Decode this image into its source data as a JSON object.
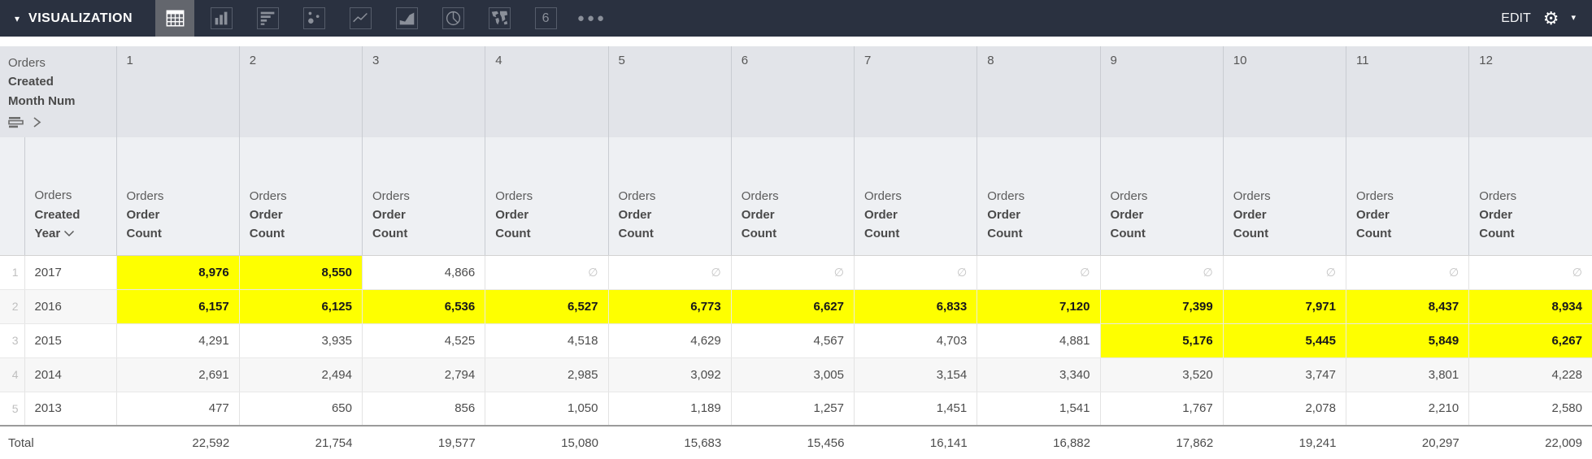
{
  "toolbar": {
    "title": "VISUALIZATION",
    "edit_label": "EDIT",
    "single_value_glyph": "6",
    "viz_types": [
      {
        "name": "table",
        "selected": true
      },
      {
        "name": "column-chart",
        "selected": false
      },
      {
        "name": "bar-chart",
        "selected": false
      },
      {
        "name": "scatter-plot",
        "selected": false
      },
      {
        "name": "line-chart",
        "selected": false
      },
      {
        "name": "area-chart",
        "selected": false
      },
      {
        "name": "pie-chart",
        "selected": false
      },
      {
        "name": "map",
        "selected": false
      },
      {
        "name": "single-value",
        "selected": false
      },
      {
        "name": "more-viz-types",
        "selected": false
      }
    ]
  },
  "colors": {
    "toolbar_bg": "#2a3140",
    "highlight": "#feff00",
    "header_row1_bg": "#e2e4e9",
    "header_row2_bg": "#eef0f3"
  },
  "pivot": {
    "view_label": "Orders",
    "field_label": "Created Month Num",
    "columns": [
      "1",
      "2",
      "3",
      "4",
      "5",
      "6",
      "7",
      "8",
      "9",
      "10",
      "11",
      "12"
    ]
  },
  "row_dimension": {
    "view_label": "Orders",
    "field_label": "Created Year"
  },
  "measure": {
    "view_label": "Orders",
    "field_label": "Order Count"
  },
  "null_symbol": "∅",
  "rows": [
    {
      "num": "1",
      "year": "2017",
      "cells": [
        {
          "v": "8,976",
          "hl": true
        },
        {
          "v": "8,550",
          "hl": true
        },
        {
          "v": "4,866"
        },
        {
          "null": true
        },
        {
          "null": true
        },
        {
          "null": true
        },
        {
          "null": true
        },
        {
          "null": true
        },
        {
          "null": true
        },
        {
          "null": true
        },
        {
          "null": true
        },
        {
          "null": true
        }
      ]
    },
    {
      "num": "2",
      "year": "2016",
      "cells": [
        {
          "v": "6,157",
          "hl": true
        },
        {
          "v": "6,125",
          "hl": true
        },
        {
          "v": "6,536",
          "hl": true
        },
        {
          "v": "6,527",
          "hl": true
        },
        {
          "v": "6,773",
          "hl": true
        },
        {
          "v": "6,627",
          "hl": true
        },
        {
          "v": "6,833",
          "hl": true
        },
        {
          "v": "7,120",
          "hl": true
        },
        {
          "v": "7,399",
          "hl": true
        },
        {
          "v": "7,971",
          "hl": true
        },
        {
          "v": "8,437",
          "hl": true
        },
        {
          "v": "8,934",
          "hl": true
        }
      ]
    },
    {
      "num": "3",
      "year": "2015",
      "cells": [
        {
          "v": "4,291"
        },
        {
          "v": "3,935"
        },
        {
          "v": "4,525"
        },
        {
          "v": "4,518"
        },
        {
          "v": "4,629"
        },
        {
          "v": "4,567"
        },
        {
          "v": "4,703"
        },
        {
          "v": "4,881"
        },
        {
          "v": "5,176",
          "hl": true
        },
        {
          "v": "5,445",
          "hl": true
        },
        {
          "v": "5,849",
          "hl": true
        },
        {
          "v": "6,267",
          "hl": true
        }
      ]
    },
    {
      "num": "4",
      "year": "2014",
      "cells": [
        {
          "v": "2,691"
        },
        {
          "v": "2,494"
        },
        {
          "v": "2,794"
        },
        {
          "v": "2,985"
        },
        {
          "v": "3,092"
        },
        {
          "v": "3,005"
        },
        {
          "v": "3,154"
        },
        {
          "v": "3,340"
        },
        {
          "v": "3,520"
        },
        {
          "v": "3,747"
        },
        {
          "v": "3,801"
        },
        {
          "v": "4,228"
        }
      ]
    },
    {
      "num": "5",
      "year": "2013",
      "cells": [
        {
          "v": "477"
        },
        {
          "v": "650"
        },
        {
          "v": "856"
        },
        {
          "v": "1,050"
        },
        {
          "v": "1,189"
        },
        {
          "v": "1,257"
        },
        {
          "v": "1,451"
        },
        {
          "v": "1,541"
        },
        {
          "v": "1,767"
        },
        {
          "v": "2,078"
        },
        {
          "v": "2,210"
        },
        {
          "v": "2,580"
        }
      ]
    }
  ],
  "total": {
    "label": "Total",
    "cells": [
      "22,592",
      "21,754",
      "19,577",
      "15,080",
      "15,683",
      "15,456",
      "16,141",
      "16,882",
      "17,862",
      "19,241",
      "20,297",
      "22,009"
    ]
  }
}
